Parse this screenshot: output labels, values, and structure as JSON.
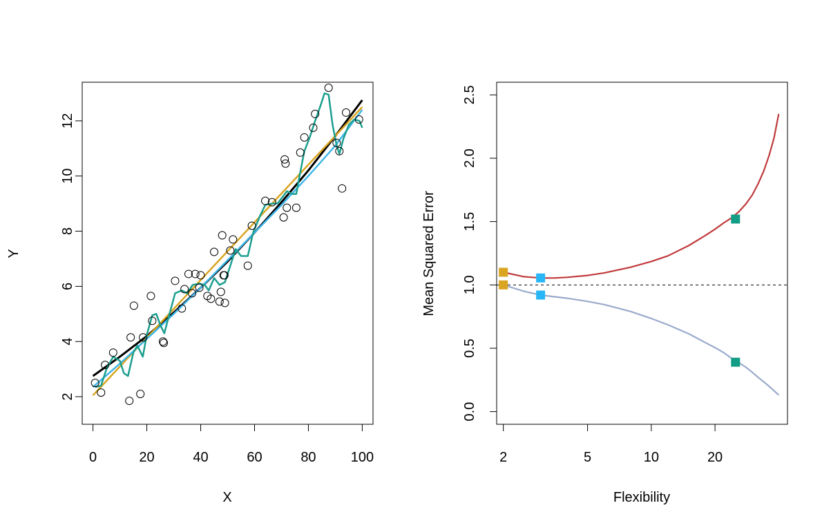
{
  "chart_data": [
    {
      "type": "scatter",
      "xlabel": "X",
      "ylabel": "Y",
      "xlim": [
        -4,
        104
      ],
      "ylim": [
        1,
        13.4
      ],
      "xticks": [
        0,
        20,
        40,
        60,
        80,
        100
      ],
      "yticks": [
        2,
        4,
        6,
        8,
        10,
        12
      ],
      "xtick_labels": [
        "0",
        "20",
        "40",
        "60",
        "80",
        "100"
      ],
      "ytick_labels": [
        "2",
        "4",
        "6",
        "8",
        "10",
        "12"
      ],
      "grid": false,
      "points": {
        "x": [
          0.8,
          3.0,
          4.5,
          7.5,
          13.5,
          14.0,
          15.2,
          17.6,
          18.6,
          21.5,
          22.0,
          26.0,
          26.3,
          30.5,
          33.0,
          34.0,
          35.5,
          36.8,
          38.0,
          39.5,
          40.0,
          42.5,
          43.8,
          45.0,
          47.0,
          47.5,
          48.0,
          48.5,
          48.8,
          49.0,
          51.0,
          52.0,
          57.5,
          59.0,
          64.0,
          66.5,
          70.8,
          71.2,
          71.5,
          72.0,
          75.5,
          77.0,
          78.5,
          81.8,
          82.5,
          87.5,
          90.5,
          91.5,
          92.5,
          94.0,
          98.8
        ],
        "y": [
          2.5,
          2.15,
          3.15,
          3.6,
          1.85,
          4.15,
          5.3,
          2.1,
          4.15,
          5.65,
          4.75,
          4.0,
          3.95,
          6.2,
          5.2,
          5.9,
          6.45,
          5.75,
          6.45,
          5.95,
          6.4,
          5.65,
          5.55,
          7.25,
          5.45,
          5.8,
          7.85,
          6.4,
          6.4,
          5.4,
          7.3,
          7.7,
          6.75,
          8.2,
          9.1,
          9.05,
          8.5,
          10.6,
          10.45,
          8.85,
          8.85,
          10.85,
          11.4,
          11.75,
          12.25,
          13.2,
          11.2,
          10.9,
          9.55,
          12.3,
          12.05
        ]
      },
      "series": [
        {
          "color": "#000000",
          "x": [
            0,
            10,
            20,
            30,
            40,
            50,
            60,
            70,
            80,
            90,
            100
          ],
          "y": [
            2.75,
            3.45,
            4.2,
            5.05,
            5.95,
            6.9,
            7.95,
            9.05,
            10.2,
            11.45,
            12.75
          ]
        },
        {
          "color": "#D9A520",
          "x": [
            0,
            100
          ],
          "y": [
            2.05,
            12.5
          ]
        },
        {
          "color": "#3FB6E8",
          "x": [
            0,
            10,
            20,
            30,
            40,
            50,
            60,
            70,
            80,
            90,
            100
          ],
          "y": [
            2.35,
            3.2,
            4.1,
            5.0,
            5.95,
            6.95,
            7.95,
            8.95,
            10.0,
            11.1,
            12.4
          ]
        },
        {
          "color": "#1A9E8E",
          "x": [
            0.8,
            3,
            5,
            7.5,
            10,
            11.5,
            13,
            15,
            16.5,
            18.5,
            20,
            22,
            23.5,
            25,
            26.5,
            28,
            30.5,
            33,
            35,
            37,
            39.5,
            41.5,
            43,
            45,
            47,
            49,
            51,
            53,
            55,
            57.5,
            59.5,
            62,
            64,
            66.5,
            68.5,
            70.5,
            72,
            74,
            75.5,
            77,
            78.5,
            80.5,
            82.5,
            84.5,
            86,
            87.5,
            89,
            90.5,
            91.5,
            93,
            95,
            97,
            99,
            100
          ],
          "y": [
            2.35,
            2.4,
            3.0,
            3.45,
            3.3,
            2.85,
            2.75,
            3.6,
            3.85,
            3.45,
            4.25,
            4.95,
            5.0,
            4.6,
            4.3,
            4.85,
            5.75,
            5.85,
            5.75,
            6.05,
            6.1,
            6.05,
            5.85,
            6.3,
            6.05,
            6.15,
            6.75,
            7.35,
            7.1,
            7.1,
            7.95,
            8.55,
            8.95,
            9.0,
            9.0,
            9.25,
            9.45,
            9.35,
            9.35,
            10.15,
            10.9,
            11.4,
            12.0,
            12.55,
            13.0,
            12.95,
            11.85,
            11.1,
            10.8,
            11.35,
            11.85,
            12.05,
            12.0,
            11.75
          ]
        }
      ]
    },
    {
      "type": "line",
      "xlabel": "Flexibility",
      "ylabel": "Mean Squared Error",
      "xscale": "log",
      "xlim": [
        1.86,
        44
      ],
      "ylim": [
        -0.1,
        2.6
      ],
      "xticks": [
        2,
        5,
        10,
        20
      ],
      "yticks": [
        0.0,
        0.5,
        1.0,
        1.5,
        2.0,
        2.5
      ],
      "xtick_labels": [
        "2",
        "5",
        "10",
        "20"
      ],
      "ytick_labels": [
        "0.0",
        "0.5",
        "1.0",
        "1.5",
        "2.0",
        "2.5"
      ],
      "grid": false,
      "reference_line": {
        "y": 1.0,
        "style": "dashed",
        "color": "#000000"
      },
      "series": [
        {
          "color": "#C0393B",
          "x": [
            2,
            2.5,
            3,
            3.5,
            4,
            5,
            6,
            8,
            10,
            12,
            15,
            18,
            20,
            22,
            24,
            26,
            28,
            30,
            32,
            34,
            36,
            38,
            40
          ],
          "y": [
            1.1,
            1.065,
            1.055,
            1.055,
            1.06,
            1.075,
            1.095,
            1.14,
            1.185,
            1.23,
            1.31,
            1.39,
            1.44,
            1.49,
            1.53,
            1.58,
            1.64,
            1.71,
            1.8,
            1.9,
            2.02,
            2.16,
            2.35
          ]
        },
        {
          "color": "#99AACC",
          "x": [
            2,
            2.5,
            3,
            4,
            5,
            6,
            8,
            10,
            12,
            15,
            18,
            20,
            22,
            24,
            26,
            28,
            30,
            32,
            34,
            36,
            38,
            40
          ],
          "y": [
            1.0,
            0.95,
            0.92,
            0.895,
            0.87,
            0.845,
            0.79,
            0.735,
            0.685,
            0.615,
            0.545,
            0.505,
            0.465,
            0.42,
            0.385,
            0.35,
            0.31,
            0.27,
            0.235,
            0.2,
            0.165,
            0.13
          ]
        }
      ],
      "markers": [
        {
          "x": 2,
          "y": 1.1,
          "color": "#DAA520"
        },
        {
          "x": 2,
          "y": 1.0,
          "color": "#DAA520"
        },
        {
          "x": 3,
          "y": 1.055,
          "color": "#29B6F6"
        },
        {
          "x": 3,
          "y": 0.92,
          "color": "#29B6F6"
        },
        {
          "x": 25,
          "y": 1.52,
          "color": "#129E86"
        },
        {
          "x": 25,
          "y": 0.39,
          "color": "#129E86"
        }
      ]
    }
  ]
}
